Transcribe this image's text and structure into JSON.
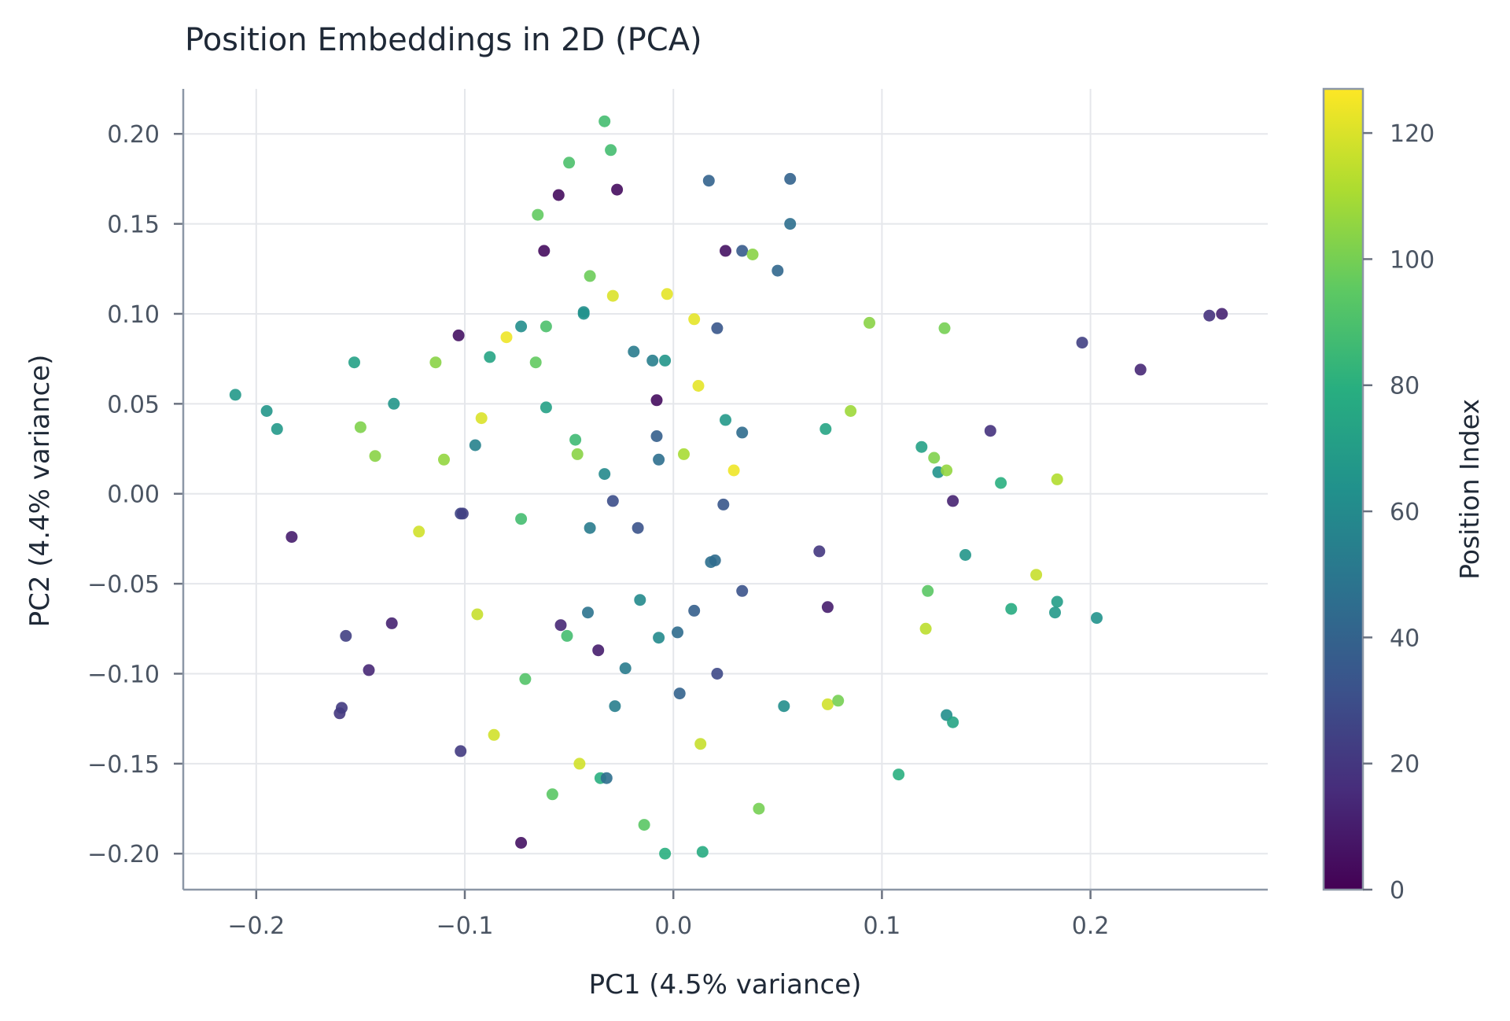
{
  "chart_data": {
    "type": "scatter",
    "title": "Position Embeddings in 2D (PCA)",
    "xlabel": "PC1 (4.5% variance)",
    "ylabel": "PC2 (4.4% variance)",
    "xlim": [
      -0.235,
      0.285
    ],
    "ylim": [
      -0.22,
      0.225
    ],
    "xticks": [
      -0.2,
      -0.1,
      0.0,
      0.1,
      0.2
    ],
    "xtick_labels": [
      "−0.2",
      "−0.1",
      "0.0",
      "0.1",
      "0.2"
    ],
    "yticks": [
      0.2,
      0.15,
      0.1,
      0.05,
      0.0,
      -0.05,
      -0.1,
      -0.15,
      -0.2
    ],
    "ytick_labels": [
      "0.20",
      "0.15",
      "0.10",
      "0.05",
      "0.00",
      "−0.05",
      "−0.10",
      "−0.15",
      "−0.20"
    ],
    "grid": true,
    "colormap": "viridis",
    "colorbar": {
      "label": "Position Index",
      "range": [
        0,
        127
      ],
      "ticks": [
        0,
        20,
        40,
        60,
        80,
        100,
        120
      ],
      "tick_labels": [
        "0",
        "20",
        "40",
        "60",
        "80",
        "100",
        "120"
      ]
    },
    "points": [
      {
        "x": -0.21,
        "y": 0.055,
        "c": 68
      },
      {
        "x": -0.195,
        "y": 0.046,
        "c": 66
      },
      {
        "x": -0.19,
        "y": 0.036,
        "c": 68
      },
      {
        "x": -0.183,
        "y": -0.024,
        "c": 10
      },
      {
        "x": -0.16,
        "y": -0.122,
        "c": 20
      },
      {
        "x": -0.159,
        "y": -0.119,
        "c": 22
      },
      {
        "x": -0.157,
        "y": -0.079,
        "c": 24
      },
      {
        "x": -0.153,
        "y": 0.073,
        "c": 72
      },
      {
        "x": -0.15,
        "y": 0.037,
        "c": 102
      },
      {
        "x": -0.146,
        "y": -0.098,
        "c": 14
      },
      {
        "x": -0.143,
        "y": 0.021,
        "c": 104
      },
      {
        "x": -0.135,
        "y": -0.072,
        "c": 12
      },
      {
        "x": -0.134,
        "y": 0.05,
        "c": 66
      },
      {
        "x": -0.122,
        "y": -0.021,
        "c": 118
      },
      {
        "x": -0.114,
        "y": 0.073,
        "c": 104
      },
      {
        "x": -0.11,
        "y": 0.019,
        "c": 106
      },
      {
        "x": -0.103,
        "y": 0.088,
        "c": 6
      },
      {
        "x": -0.102,
        "y": -0.011,
        "c": 26
      },
      {
        "x": -0.101,
        "y": -0.011,
        "c": 24
      },
      {
        "x": -0.102,
        "y": -0.143,
        "c": 22
      },
      {
        "x": -0.095,
        "y": 0.027,
        "c": 56
      },
      {
        "x": -0.094,
        "y": -0.067,
        "c": 116
      },
      {
        "x": -0.092,
        "y": 0.042,
        "c": 120
      },
      {
        "x": -0.088,
        "y": 0.076,
        "c": 74
      },
      {
        "x": -0.086,
        "y": -0.134,
        "c": 118
      },
      {
        "x": -0.08,
        "y": 0.087,
        "c": 124
      },
      {
        "x": -0.073,
        "y": 0.093,
        "c": 62
      },
      {
        "x": -0.073,
        "y": -0.014,
        "c": 88
      },
      {
        "x": -0.073,
        "y": -0.194,
        "c": 6
      },
      {
        "x": -0.071,
        "y": -0.103,
        "c": 92
      },
      {
        "x": -0.066,
        "y": 0.073,
        "c": 96
      },
      {
        "x": -0.065,
        "y": 0.155,
        "c": 96
      },
      {
        "x": -0.062,
        "y": 0.135,
        "c": 4
      },
      {
        "x": -0.061,
        "y": 0.093,
        "c": 90
      },
      {
        "x": -0.061,
        "y": 0.048,
        "c": 72
      },
      {
        "x": -0.058,
        "y": -0.167,
        "c": 94
      },
      {
        "x": -0.055,
        "y": 0.166,
        "c": 4
      },
      {
        "x": -0.054,
        "y": -0.073,
        "c": 14
      },
      {
        "x": -0.051,
        "y": -0.079,
        "c": 88
      },
      {
        "x": -0.05,
        "y": 0.184,
        "c": 90
      },
      {
        "x": -0.047,
        "y": 0.03,
        "c": 86
      },
      {
        "x": -0.046,
        "y": 0.022,
        "c": 104
      },
      {
        "x": -0.045,
        "y": -0.15,
        "c": 118
      },
      {
        "x": -0.043,
        "y": 0.101,
        "c": 62
      },
      {
        "x": -0.043,
        "y": 0.1,
        "c": 64
      },
      {
        "x": -0.041,
        "y": -0.066,
        "c": 48
      },
      {
        "x": -0.04,
        "y": -0.019,
        "c": 52
      },
      {
        "x": -0.04,
        "y": 0.121,
        "c": 98
      },
      {
        "x": -0.036,
        "y": -0.087,
        "c": 10
      },
      {
        "x": -0.035,
        "y": -0.158,
        "c": 80
      },
      {
        "x": -0.033,
        "y": 0.011,
        "c": 60
      },
      {
        "x": -0.033,
        "y": 0.207,
        "c": 88
      },
      {
        "x": -0.032,
        "y": -0.158,
        "c": 46
      },
      {
        "x": -0.03,
        "y": 0.191,
        "c": 88
      },
      {
        "x": -0.029,
        "y": -0.004,
        "c": 30
      },
      {
        "x": -0.029,
        "y": 0.11,
        "c": 120
      },
      {
        "x": -0.028,
        "y": -0.118,
        "c": 54
      },
      {
        "x": -0.027,
        "y": 0.169,
        "c": 4
      },
      {
        "x": -0.023,
        "y": -0.097,
        "c": 52
      },
      {
        "x": -0.019,
        "y": 0.079,
        "c": 52
      },
      {
        "x": -0.017,
        "y": -0.019,
        "c": 32
      },
      {
        "x": -0.016,
        "y": -0.059,
        "c": 60
      },
      {
        "x": -0.014,
        "y": -0.184,
        "c": 94
      },
      {
        "x": -0.01,
        "y": 0.074,
        "c": 54
      },
      {
        "x": -0.008,
        "y": 0.032,
        "c": 38
      },
      {
        "x": -0.008,
        "y": 0.052,
        "c": 4
      },
      {
        "x": -0.007,
        "y": -0.08,
        "c": 60
      },
      {
        "x": -0.007,
        "y": 0.019,
        "c": 46
      },
      {
        "x": -0.004,
        "y": 0.074,
        "c": 66
      },
      {
        "x": -0.004,
        "y": -0.2,
        "c": 80
      },
      {
        "x": -0.003,
        "y": 0.111,
        "c": 122
      },
      {
        "x": 0.002,
        "y": -0.077,
        "c": 44
      },
      {
        "x": 0.003,
        "y": -0.111,
        "c": 40
      },
      {
        "x": 0.005,
        "y": 0.022,
        "c": 110
      },
      {
        "x": 0.01,
        "y": -0.065,
        "c": 38
      },
      {
        "x": 0.01,
        "y": 0.097,
        "c": 122
      },
      {
        "x": 0.012,
        "y": 0.06,
        "c": 122
      },
      {
        "x": 0.013,
        "y": -0.139,
        "c": 116
      },
      {
        "x": 0.014,
        "y": -0.199,
        "c": 78
      },
      {
        "x": 0.017,
        "y": 0.174,
        "c": 40
      },
      {
        "x": 0.018,
        "y": -0.038,
        "c": 46
      },
      {
        "x": 0.02,
        "y": -0.037,
        "c": 44
      },
      {
        "x": 0.021,
        "y": 0.092,
        "c": 34
      },
      {
        "x": 0.021,
        "y": -0.1,
        "c": 28
      },
      {
        "x": 0.024,
        "y": -0.006,
        "c": 34
      },
      {
        "x": 0.025,
        "y": 0.135,
        "c": 6
      },
      {
        "x": 0.025,
        "y": 0.041,
        "c": 68
      },
      {
        "x": 0.029,
        "y": 0.013,
        "c": 124
      },
      {
        "x": 0.033,
        "y": 0.135,
        "c": 36
      },
      {
        "x": 0.033,
        "y": 0.034,
        "c": 44
      },
      {
        "x": 0.033,
        "y": -0.054,
        "c": 32
      },
      {
        "x": 0.038,
        "y": 0.133,
        "c": 104
      },
      {
        "x": 0.041,
        "y": -0.175,
        "c": 100
      },
      {
        "x": 0.05,
        "y": 0.124,
        "c": 42
      },
      {
        "x": 0.053,
        "y": -0.118,
        "c": 62
      },
      {
        "x": 0.056,
        "y": 0.175,
        "c": 40
      },
      {
        "x": 0.056,
        "y": 0.15,
        "c": 46
      },
      {
        "x": 0.07,
        "y": -0.032,
        "c": 20
      },
      {
        "x": 0.073,
        "y": 0.036,
        "c": 74
      },
      {
        "x": 0.074,
        "y": -0.063,
        "c": 10
      },
      {
        "x": 0.074,
        "y": -0.117,
        "c": 118
      },
      {
        "x": 0.079,
        "y": -0.115,
        "c": 100
      },
      {
        "x": 0.085,
        "y": 0.046,
        "c": 108
      },
      {
        "x": 0.094,
        "y": 0.095,
        "c": 104
      },
      {
        "x": 0.108,
        "y": -0.156,
        "c": 80
      },
      {
        "x": 0.119,
        "y": 0.026,
        "c": 72
      },
      {
        "x": 0.121,
        "y": -0.075,
        "c": 114
      },
      {
        "x": 0.122,
        "y": -0.054,
        "c": 94
      },
      {
        "x": 0.125,
        "y": 0.02,
        "c": 102
      },
      {
        "x": 0.127,
        "y": 0.012,
        "c": 64
      },
      {
        "x": 0.13,
        "y": 0.092,
        "c": 100
      },
      {
        "x": 0.131,
        "y": 0.013,
        "c": 106
      },
      {
        "x": 0.131,
        "y": -0.123,
        "c": 62
      },
      {
        "x": 0.134,
        "y": -0.004,
        "c": 12
      },
      {
        "x": 0.134,
        "y": -0.127,
        "c": 74
      },
      {
        "x": 0.14,
        "y": -0.034,
        "c": 66
      },
      {
        "x": 0.152,
        "y": 0.035,
        "c": 18
      },
      {
        "x": 0.157,
        "y": 0.006,
        "c": 80
      },
      {
        "x": 0.162,
        "y": -0.064,
        "c": 78
      },
      {
        "x": 0.174,
        "y": -0.045,
        "c": 116
      },
      {
        "x": 0.183,
        "y": -0.066,
        "c": 68
      },
      {
        "x": 0.184,
        "y": -0.06,
        "c": 70
      },
      {
        "x": 0.184,
        "y": 0.008,
        "c": 112
      },
      {
        "x": 0.196,
        "y": 0.084,
        "c": 24
      },
      {
        "x": 0.203,
        "y": -0.069,
        "c": 64
      },
      {
        "x": 0.224,
        "y": 0.069,
        "c": 14
      },
      {
        "x": 0.257,
        "y": 0.099,
        "c": 18
      },
      {
        "x": 0.263,
        "y": 0.1,
        "c": 12
      }
    ]
  }
}
